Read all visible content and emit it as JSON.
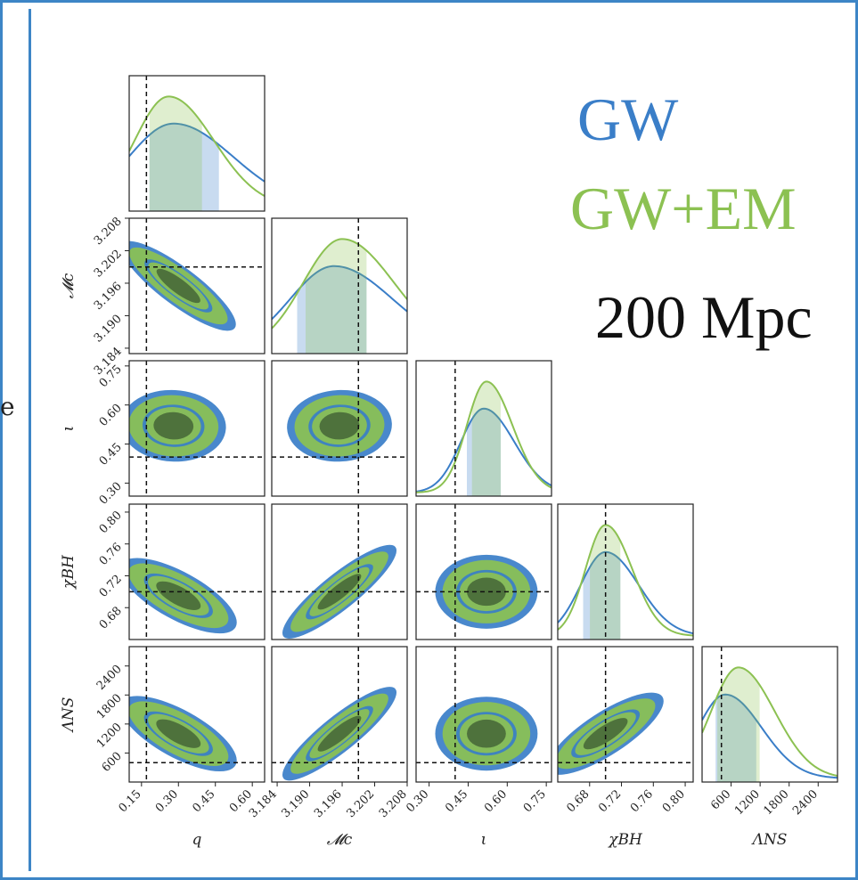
{
  "colors": {
    "gw": "#3a7ec8",
    "gwem": "#8cc152",
    "dark": "#4a6b3a",
    "frame": "#3d85c6"
  },
  "legend": {
    "gw": "GW",
    "gwem": "GW+EM"
  },
  "annotation": "200 Mpc",
  "edge_glyph": "e",
  "chart_data": {
    "type": "corner",
    "legend_placement": "top-right",
    "params": [
      {
        "label": "q",
        "range": [
          0.1,
          0.65
        ],
        "ticks": [
          "0.15",
          "0.30",
          "0.45",
          "0.60"
        ],
        "truth": 0.17
      },
      {
        "label": "𝓜c",
        "range": [
          3.183,
          3.208
        ],
        "ticks": [
          "3.184",
          "3.190",
          "3.196",
          "3.202",
          "3.208"
        ],
        "truth": 3.199
      },
      {
        "label": "ι",
        "range": [
          0.25,
          0.77
        ],
        "ticks": [
          "0.30",
          "0.45",
          "0.60",
          "0.75"
        ],
        "truth": 0.4
      },
      {
        "label": "χBH",
        "range": [
          0.64,
          0.81
        ],
        "ticks": [
          "0.68",
          "0.72",
          "0.76",
          "0.80"
        ],
        "truth": 0.7
      },
      {
        "label": "ΛNS",
        "range": [
          0,
          2800
        ],
        "ticks": [
          "600",
          "1200",
          "1800",
          "2400"
        ],
        "truth": 400
      }
    ],
    "marginals": [
      {
        "gw": {
          "peak": 0.28,
          "ci": [
            0.18,
            0.47
          ]
        },
        "gwem": {
          "peak": 0.26,
          "ci": [
            0.18,
            0.4
          ]
        }
      },
      {
        "gw": {
          "peak": 3.1945,
          "ci": [
            3.1875,
            3.2005
          ]
        },
        "gwem": {
          "peak": 3.196,
          "ci": [
            3.189,
            3.2005
          ]
        }
      },
      {
        "gw": {
          "peak": 0.51,
          "ci": [
            0.44,
            0.58
          ]
        },
        "gwem": {
          "peak": 0.52,
          "ci": [
            0.46,
            0.58
          ]
        }
      },
      {
        "gw": {
          "peak": 0.7,
          "ci": [
            0.67,
            0.72
          ]
        },
        "gwem": {
          "peak": 0.7,
          "ci": [
            0.68,
            0.72
          ]
        }
      },
      {
        "gw": {
          "peak": 480,
          "ci": [
            250,
            1150
          ]
        },
        "gwem": {
          "peak": 750,
          "ci": [
            300,
            1200
          ]
        }
      }
    ],
    "correlations": [
      {
        "row": 1,
        "col": 0,
        "center": [
          0.3,
          3.1955
        ],
        "rho": -0.75
      },
      {
        "row": 2,
        "col": 0,
        "center": [
          0.28,
          0.52
        ],
        "rho": -0.05
      },
      {
        "row": 2,
        "col": 1,
        "center": [
          3.1955,
          0.52
        ],
        "rho": 0.05
      },
      {
        "row": 3,
        "col": 0,
        "center": [
          0.3,
          0.695
        ],
        "rho": -0.55
      },
      {
        "row": 3,
        "col": 1,
        "center": [
          3.1955,
          0.7
        ],
        "rho": 0.8
      },
      {
        "row": 3,
        "col": 2,
        "center": [
          0.52,
          0.7
        ],
        "rho": 0.0
      },
      {
        "row": 4,
        "col": 0,
        "center": [
          0.3,
          1000
        ],
        "rho": -0.55
      },
      {
        "row": 4,
        "col": 1,
        "center": [
          3.1955,
          1000
        ],
        "rho": 0.8
      },
      {
        "row": 4,
        "col": 2,
        "center": [
          0.52,
          1000
        ],
        "rho": 0.0
      },
      {
        "row": 4,
        "col": 3,
        "center": [
          0.7,
          1000
        ],
        "rho": 0.65
      }
    ]
  }
}
